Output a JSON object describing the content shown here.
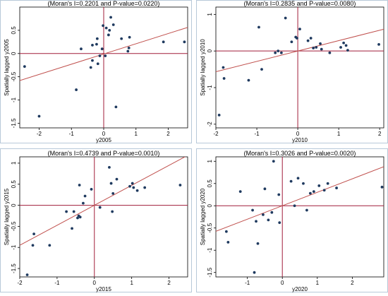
{
  "chart_data": [
    {
      "type": "scatter",
      "title": "(Moran's I=0.2201 and P-value=0.0220)",
      "xlabel": "y2005",
      "ylabel": "Spatially lagged y2005",
      "xlim": [
        -2.6,
        2.6
      ],
      "ylim": [
        -1.6,
        1.0
      ],
      "xticks": [
        -2,
        -1,
        0,
        1,
        2
      ],
      "yticks": [
        -1.5,
        -1,
        -0.5,
        0,
        0.5
      ],
      "fit_line": {
        "intercept": -0.01,
        "slope": 0.2201
      },
      "points": [
        {
          "x": -2.45,
          "y": -0.28
        },
        {
          "x": -2.0,
          "y": -1.35
        },
        {
          "x": -0.85,
          "y": -0.78
        },
        {
          "x": -0.7,
          "y": 0.1
        },
        {
          "x": -0.4,
          "y": -0.3
        },
        {
          "x": -0.35,
          "y": 0.18
        },
        {
          "x": -0.35,
          "y": -0.15
        },
        {
          "x": -0.2,
          "y": 0.32
        },
        {
          "x": -0.22,
          "y": 0.2
        },
        {
          "x": -0.18,
          "y": -0.22
        },
        {
          "x": -0.12,
          "y": -0.05
        },
        {
          "x": -0.05,
          "y": 0.1
        },
        {
          "x": 0.05,
          "y": -0.05
        },
        {
          "x": 0.08,
          "y": 0.55
        },
        {
          "x": -0.02,
          "y": 0.6
        },
        {
          "x": 0.15,
          "y": 0.4
        },
        {
          "x": 0.18,
          "y": 0.5
        },
        {
          "x": 0.22,
          "y": 0.78
        },
        {
          "x": 0.3,
          "y": 0.62
        },
        {
          "x": 0.38,
          "y": -1.15
        },
        {
          "x": 0.55,
          "y": 0.32
        },
        {
          "x": 0.75,
          "y": 0.05
        },
        {
          "x": 0.8,
          "y": 0.35
        },
        {
          "x": 0.78,
          "y": 0.12
        },
        {
          "x": 1.85,
          "y": 0.25
        },
        {
          "x": 2.5,
          "y": 0.25
        }
      ]
    },
    {
      "type": "scatter",
      "title": "(Moran's I=0.2835 and P-value=0.0080)",
      "xlabel": "y2010",
      "ylabel": "Spatially lagged y2010",
      "xlim": [
        -2.0,
        2.1
      ],
      "ylim": [
        -2.1,
        1.2
      ],
      "xticks": [
        -2,
        -1,
        0,
        1,
        2
      ],
      "yticks": [
        -2,
        -1,
        0,
        1
      ],
      "fit_line": {
        "intercept": 0.0,
        "slope": 0.2835
      },
      "points": [
        {
          "x": -1.92,
          "y": -1.75
        },
        {
          "x": -1.82,
          "y": -0.45
        },
        {
          "x": -1.8,
          "y": -0.75
        },
        {
          "x": -1.2,
          "y": -0.8
        },
        {
          "x": -0.95,
          "y": 0.65
        },
        {
          "x": -0.88,
          "y": -0.5
        },
        {
          "x": -0.55,
          "y": -0.05
        },
        {
          "x": -0.48,
          "y": 0.0
        },
        {
          "x": -0.4,
          "y": -0.05
        },
        {
          "x": -0.3,
          "y": 0.9
        },
        {
          "x": -0.15,
          "y": 0.25
        },
        {
          "x": -0.05,
          "y": 0.38
        },
        {
          "x": -0.02,
          "y": 0.35
        },
        {
          "x": 0.05,
          "y": 0.6
        },
        {
          "x": 0.25,
          "y": 0.28
        },
        {
          "x": 0.32,
          "y": 0.35
        },
        {
          "x": 0.38,
          "y": 0.08
        },
        {
          "x": 0.45,
          "y": 0.1
        },
        {
          "x": 0.55,
          "y": 0.2
        },
        {
          "x": 0.58,
          "y": 0.05
        },
        {
          "x": 0.78,
          "y": -0.05
        },
        {
          "x": 1.05,
          "y": 0.1
        },
        {
          "x": 1.12,
          "y": 0.22
        },
        {
          "x": 1.18,
          "y": 0.15
        },
        {
          "x": 1.22,
          "y": 0.02
        },
        {
          "x": 1.98,
          "y": 0.18
        }
      ]
    },
    {
      "type": "scatter",
      "title": "(Moran's I=0.4739 and P-value=0.0010)",
      "xlabel": "y2015",
      "ylabel": "Spatially lagged y2015",
      "xlim": [
        -2.0,
        2.5
      ],
      "ylim": [
        -1.7,
        1.15
      ],
      "xticks": [
        -2,
        -1,
        0,
        1,
        2
      ],
      "yticks": [
        -1.5,
        -1,
        -0.5,
        0,
        0.5,
        1
      ],
      "fit_line": {
        "intercept": 0.0,
        "slope": 0.4739
      },
      "points": [
        {
          "x": -1.8,
          "y": -1.65
        },
        {
          "x": -1.62,
          "y": -0.68
        },
        {
          "x": -1.65,
          "y": -0.95
        },
        {
          "x": -1.2,
          "y": -0.95
        },
        {
          "x": -0.75,
          "y": -0.15
        },
        {
          "x": -0.6,
          "y": -0.55
        },
        {
          "x": -0.55,
          "y": -0.15
        },
        {
          "x": -0.45,
          "y": -0.3
        },
        {
          "x": -0.42,
          "y": -0.25
        },
        {
          "x": -0.38,
          "y": -0.28
        },
        {
          "x": -0.4,
          "y": 0.48
        },
        {
          "x": -0.3,
          "y": 0.05
        },
        {
          "x": -0.25,
          "y": 0.22
        },
        {
          "x": -0.08,
          "y": 0.38
        },
        {
          "x": 0.15,
          "y": -0.05
        },
        {
          "x": 0.4,
          "y": 0.9
        },
        {
          "x": 0.45,
          "y": 0.52
        },
        {
          "x": 0.5,
          "y": 0.28
        },
        {
          "x": 0.48,
          "y": -0.15
        },
        {
          "x": 0.6,
          "y": 0.62
        },
        {
          "x": 0.95,
          "y": 0.45
        },
        {
          "x": 1.05,
          "y": 0.42
        },
        {
          "x": 1.15,
          "y": 0.35
        },
        {
          "x": 1.35,
          "y": 0.42
        },
        {
          "x": 1.02,
          "y": 0.52
        },
        {
          "x": 2.3,
          "y": 0.48
        }
      ]
    },
    {
      "type": "scatter",
      "title": "(Moran's I=0.3026 and P-value=0.0020)",
      "xlabel": "y2020",
      "ylabel": "Spatially lagged y2020",
      "xlim": [
        -1.9,
        2.9
      ],
      "ylim": [
        -1.6,
        1.1
      ],
      "xticks": [
        -1,
        0,
        1,
        2
      ],
      "yticks": [
        -1.5,
        -1,
        -0.5,
        0,
        0.5,
        1
      ],
      "fit_line": {
        "intercept": 0.0,
        "slope": 0.3026
      },
      "points": [
        {
          "x": -1.6,
          "y": -0.58
        },
        {
          "x": -1.55,
          "y": -0.82
        },
        {
          "x": -1.2,
          "y": 0.32
        },
        {
          "x": -0.85,
          "y": -0.1
        },
        {
          "x": -0.8,
          "y": -1.5
        },
        {
          "x": -0.7,
          "y": -0.85
        },
        {
          "x": -0.75,
          "y": -0.35
        },
        {
          "x": -0.55,
          "y": -0.2
        },
        {
          "x": -0.5,
          "y": 0.38
        },
        {
          "x": -0.4,
          "y": -0.32
        },
        {
          "x": -0.3,
          "y": -0.15
        },
        {
          "x": -0.25,
          "y": 1.0
        },
        {
          "x": -0.1,
          "y": 0.25
        },
        {
          "x": -0.08,
          "y": -0.38
        },
        {
          "x": 0.25,
          "y": 0.55
        },
        {
          "x": 0.35,
          "y": 0.0
        },
        {
          "x": 0.45,
          "y": 0.62
        },
        {
          "x": 0.6,
          "y": 0.5
        },
        {
          "x": 0.7,
          "y": -0.1
        },
        {
          "x": 0.8,
          "y": 0.28
        },
        {
          "x": 0.9,
          "y": 0.32
        },
        {
          "x": 1.05,
          "y": 0.45
        },
        {
          "x": 1.2,
          "y": 0.35
        },
        {
          "x": 1.55,
          "y": 0.4
        },
        {
          "x": 1.3,
          "y": 0.5
        },
        {
          "x": 2.85,
          "y": 0.42
        }
      ]
    }
  ],
  "colors": {
    "background": "#ffffff",
    "frame": "#000000",
    "points": "#1f3a5f",
    "fit_line": "#c0504d",
    "reference_lines": "#a11d3a",
    "panel_border": "#b8c9d9"
  }
}
